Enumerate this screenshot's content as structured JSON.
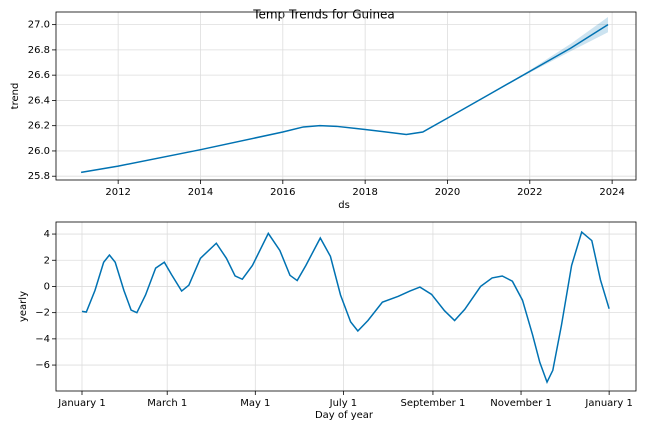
{
  "title": "Temp Trends for Guinea",
  "chart_data": [
    {
      "type": "line",
      "ylabel": "trend",
      "xlabel": "ds",
      "color": "#0072B2",
      "band_color": "#0072B2",
      "grid": true,
      "x": [
        2011.1,
        2012,
        2014,
        2016,
        2016.5,
        2016.9,
        2017.3,
        2018,
        2019,
        2019.4,
        2020,
        2021,
        2022,
        2023,
        2023.9
      ],
      "values": [
        25.83,
        25.88,
        26.01,
        26.15,
        26.19,
        26.2,
        26.195,
        26.17,
        26.13,
        26.15,
        26.26,
        26.445,
        26.63,
        26.815,
        27.0
      ],
      "lower": [
        25.83,
        25.88,
        26.01,
        26.15,
        26.19,
        26.2,
        26.195,
        26.17,
        26.13,
        26.15,
        26.26,
        26.445,
        26.62,
        26.79,
        26.94
      ],
      "upper": [
        25.83,
        25.88,
        26.01,
        26.15,
        26.19,
        26.2,
        26.195,
        26.17,
        26.13,
        26.15,
        26.26,
        26.445,
        26.64,
        26.85,
        27.06
      ],
      "xlim": [
        2010.49,
        2024.58
      ],
      "xticks": [
        2012,
        2014,
        2016,
        2018,
        2020,
        2022,
        2024
      ],
      "ylim": [
        25.77,
        27.1
      ],
      "yticks": [
        25.8,
        {
          "value": 26,
          "label": "26.0"
        },
        26.2,
        26.4,
        26.6,
        26.8,
        {
          "value": 27,
          "label": "27.0"
        }
      ]
    },
    {
      "type": "line",
      "ylabel": "yearly",
      "xlabel": "Day of year",
      "color": "#0072B2",
      "grid": true,
      "x": [
        0,
        3,
        9,
        15,
        19,
        23,
        29,
        34,
        38,
        44,
        51,
        57,
        62,
        69,
        74,
        82,
        93,
        100,
        106,
        111,
        118,
        129,
        137,
        144,
        149,
        155,
        165,
        172,
        179,
        186,
        191,
        198,
        208,
        219,
        227,
        234,
        242,
        251,
        258,
        265,
        276,
        284,
        291,
        298,
        305,
        312,
        317,
        322,
        326,
        332,
        339,
        346,
        353,
        359,
        365
      ],
      "values": [
        -1.9,
        -1.95,
        -0.3,
        1.85,
        2.4,
        1.85,
        -0.3,
        -1.8,
        -2.0,
        -0.65,
        1.4,
        1.85,
        0.9,
        -0.35,
        0.1,
        2.15,
        3.3,
        2.15,
        0.8,
        0.55,
        1.6,
        4.05,
        2.75,
        0.85,
        0.45,
        1.6,
        3.7,
        2.3,
        -0.65,
        -2.7,
        -3.4,
        -2.6,
        -1.2,
        -0.75,
        -0.35,
        -0.05,
        -0.6,
        -1.85,
        -2.6,
        -1.75,
        0.0,
        0.65,
        0.8,
        0.4,
        -1.05,
        -3.7,
        -5.8,
        -7.3,
        -6.4,
        -2.95,
        1.6,
        4.15,
        3.5,
        0.5,
        -1.7
      ],
      "xlim": [
        -18,
        383.6
      ],
      "xticks": [
        {
          "value": 0,
          "label": "January 1"
        },
        {
          "value": 59,
          "label": "March 1"
        },
        {
          "value": 120,
          "label": "May 1"
        },
        {
          "value": 181,
          "label": "July 1"
        },
        {
          "value": 243,
          "label": "September 1"
        },
        {
          "value": 304,
          "label": "November 1"
        },
        {
          "value": 365,
          "label": "January 1"
        }
      ],
      "ylim": [
        -7.98,
        4.92
      ],
      "yticks": [
        {
          "value": -6,
          "label": "−6"
        },
        {
          "value": -4,
          "label": "−4"
        },
        {
          "value": -2,
          "label": "−2"
        },
        0,
        2,
        4
      ]
    }
  ]
}
